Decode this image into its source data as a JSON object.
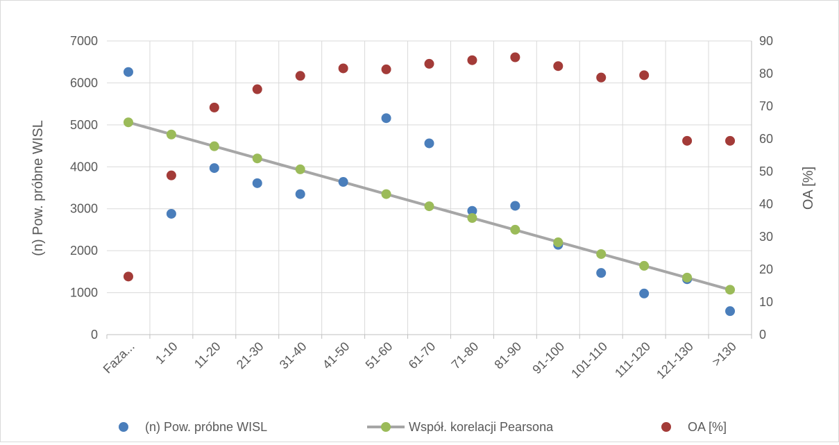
{
  "chart_data": {
    "type": "scatter",
    "categories": [
      "Faza...",
      "1-10",
      "11-20",
      "21-30",
      "31-40",
      "41-50",
      "51-60",
      "61-70",
      "71-80",
      "81-90",
      "91-100",
      "101-110",
      "111-120",
      "121-130",
      ">130"
    ],
    "series": [
      {
        "name": "(n) Pow. próbne WISL",
        "axis": "left",
        "style": "markers",
        "color": "#4a7ebb",
        "values": [
          6260,
          2880,
          3970,
          3610,
          3350,
          3640,
          5160,
          4560,
          2950,
          3070,
          2140,
          1470,
          980,
          1320,
          560
        ]
      },
      {
        "name": "Współ. korelacji Pearsona",
        "axis": "left",
        "style": "line-markers",
        "color": "#9bbb59",
        "line_color": "#a6a6a6",
        "values": [
          5060,
          4770,
          4490,
          4200,
          3940,
          null,
          3350,
          3060,
          2780,
          2500,
          2200,
          1920,
          1640,
          1360,
          1070
        ],
        "trend_line": [
          5060,
          1070
        ]
      },
      {
        "name": "OA [%]",
        "axis": "right",
        "style": "markers",
        "color": "#a33b38",
        "values": [
          17.8,
          48.8,
          69.6,
          75.2,
          79.3,
          81.6,
          81.3,
          83.0,
          84.1,
          85.0,
          82.3,
          78.8,
          79.5,
          59.4,
          59.4
        ]
      }
    ],
    "ylabel": "(n) Pow. próbne WISL",
    "y2label": "OA [%]",
    "ylim": [
      0,
      7000
    ],
    "y2lim": [
      0,
      90
    ],
    "yticks": [
      "0",
      "1000",
      "2000",
      "3000",
      "4000",
      "5000",
      "6000",
      "7000"
    ],
    "y2ticks": [
      "0",
      "10",
      "20",
      "30",
      "40",
      "50",
      "60",
      "70",
      "80",
      "90"
    ],
    "grid": true,
    "legend_position": "bottom"
  }
}
